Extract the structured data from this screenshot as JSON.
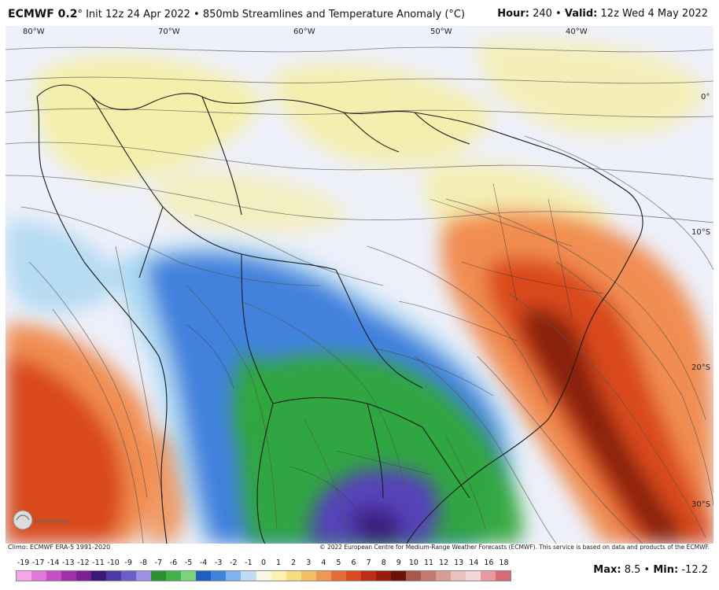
{
  "header": {
    "model": "ECMWF 0.2",
    "degree": "°",
    "init": "Init 12z 24 Apr 2022",
    "bullet": "•",
    "product": "850mb Streamlines and Temperature Anomaly (°C)",
    "hour_label": "Hour:",
    "hour_value": "240",
    "valid_label": "Valid:",
    "valid_value": "12z Wed 4 May 2022"
  },
  "map": {
    "lon_labels": [
      "80°W",
      "70°W",
      "60°W",
      "50°W",
      "40°W"
    ],
    "lat_labels": [
      "0°",
      "10°S",
      "20°S",
      "30°S"
    ],
    "logo_text": "WEATHERBELL",
    "colors": {
      "warm_dark": "#7a1a08",
      "warm": "#d8441a",
      "warm_light": "#f08848",
      "pale_yellow": "#f6ee9c",
      "neutral": "#eef0fa",
      "cool_light": "#a8d6f0",
      "cool": "#3e7ddc",
      "green": "#2ea83a",
      "purple": "#5a3cc0",
      "borders": "#1a1a1a",
      "streamlines": "#555555"
    }
  },
  "footer": {
    "climo": "Climo: ECMWF ERA-5 1991-2020",
    "copyright": "© 2022 European Centre for Medium-Range Weather Forecasts (ECMWF). This service is based on data and products of the ECMWF.",
    "max_label": "Max:",
    "max_value": "8.5",
    "min_label": "Min:",
    "min_value": "-12.2",
    "scale_ticks": [
      "-19",
      "-17",
      "-14",
      "-13",
      "-12",
      "-11",
      "-10",
      "-9",
      "-8",
      "-7",
      "-6",
      "-5",
      "-4",
      "-3",
      "-2",
      "-1",
      "0",
      "1",
      "2",
      "3",
      "4",
      "5",
      "6",
      "7",
      "8",
      "9",
      "10",
      "11",
      "12",
      "13",
      "14",
      "16",
      "18"
    ],
    "scale_colors": [
      "#f5a6e6",
      "#e078d8",
      "#c74ec4",
      "#a02fa8",
      "#7b1f95",
      "#3a1a78",
      "#4b3aa8",
      "#6a5ec8",
      "#9a92e0",
      "#2b8f2f",
      "#3fb24a",
      "#7cd37c",
      "#1f5fc0",
      "#3f83de",
      "#7fb3ee",
      "#bfdcf6",
      "#f7f7e6",
      "#fbf3b0",
      "#f6de7e",
      "#f3bf64",
      "#ee9850",
      "#e56e38",
      "#d84a24",
      "#bd2c14",
      "#981d0c",
      "#6e1208",
      "#a8584a",
      "#c27a6e",
      "#d89e96",
      "#e8c2bc",
      "#f2d8d6",
      "#e89aa0",
      "#d86a78"
    ]
  }
}
